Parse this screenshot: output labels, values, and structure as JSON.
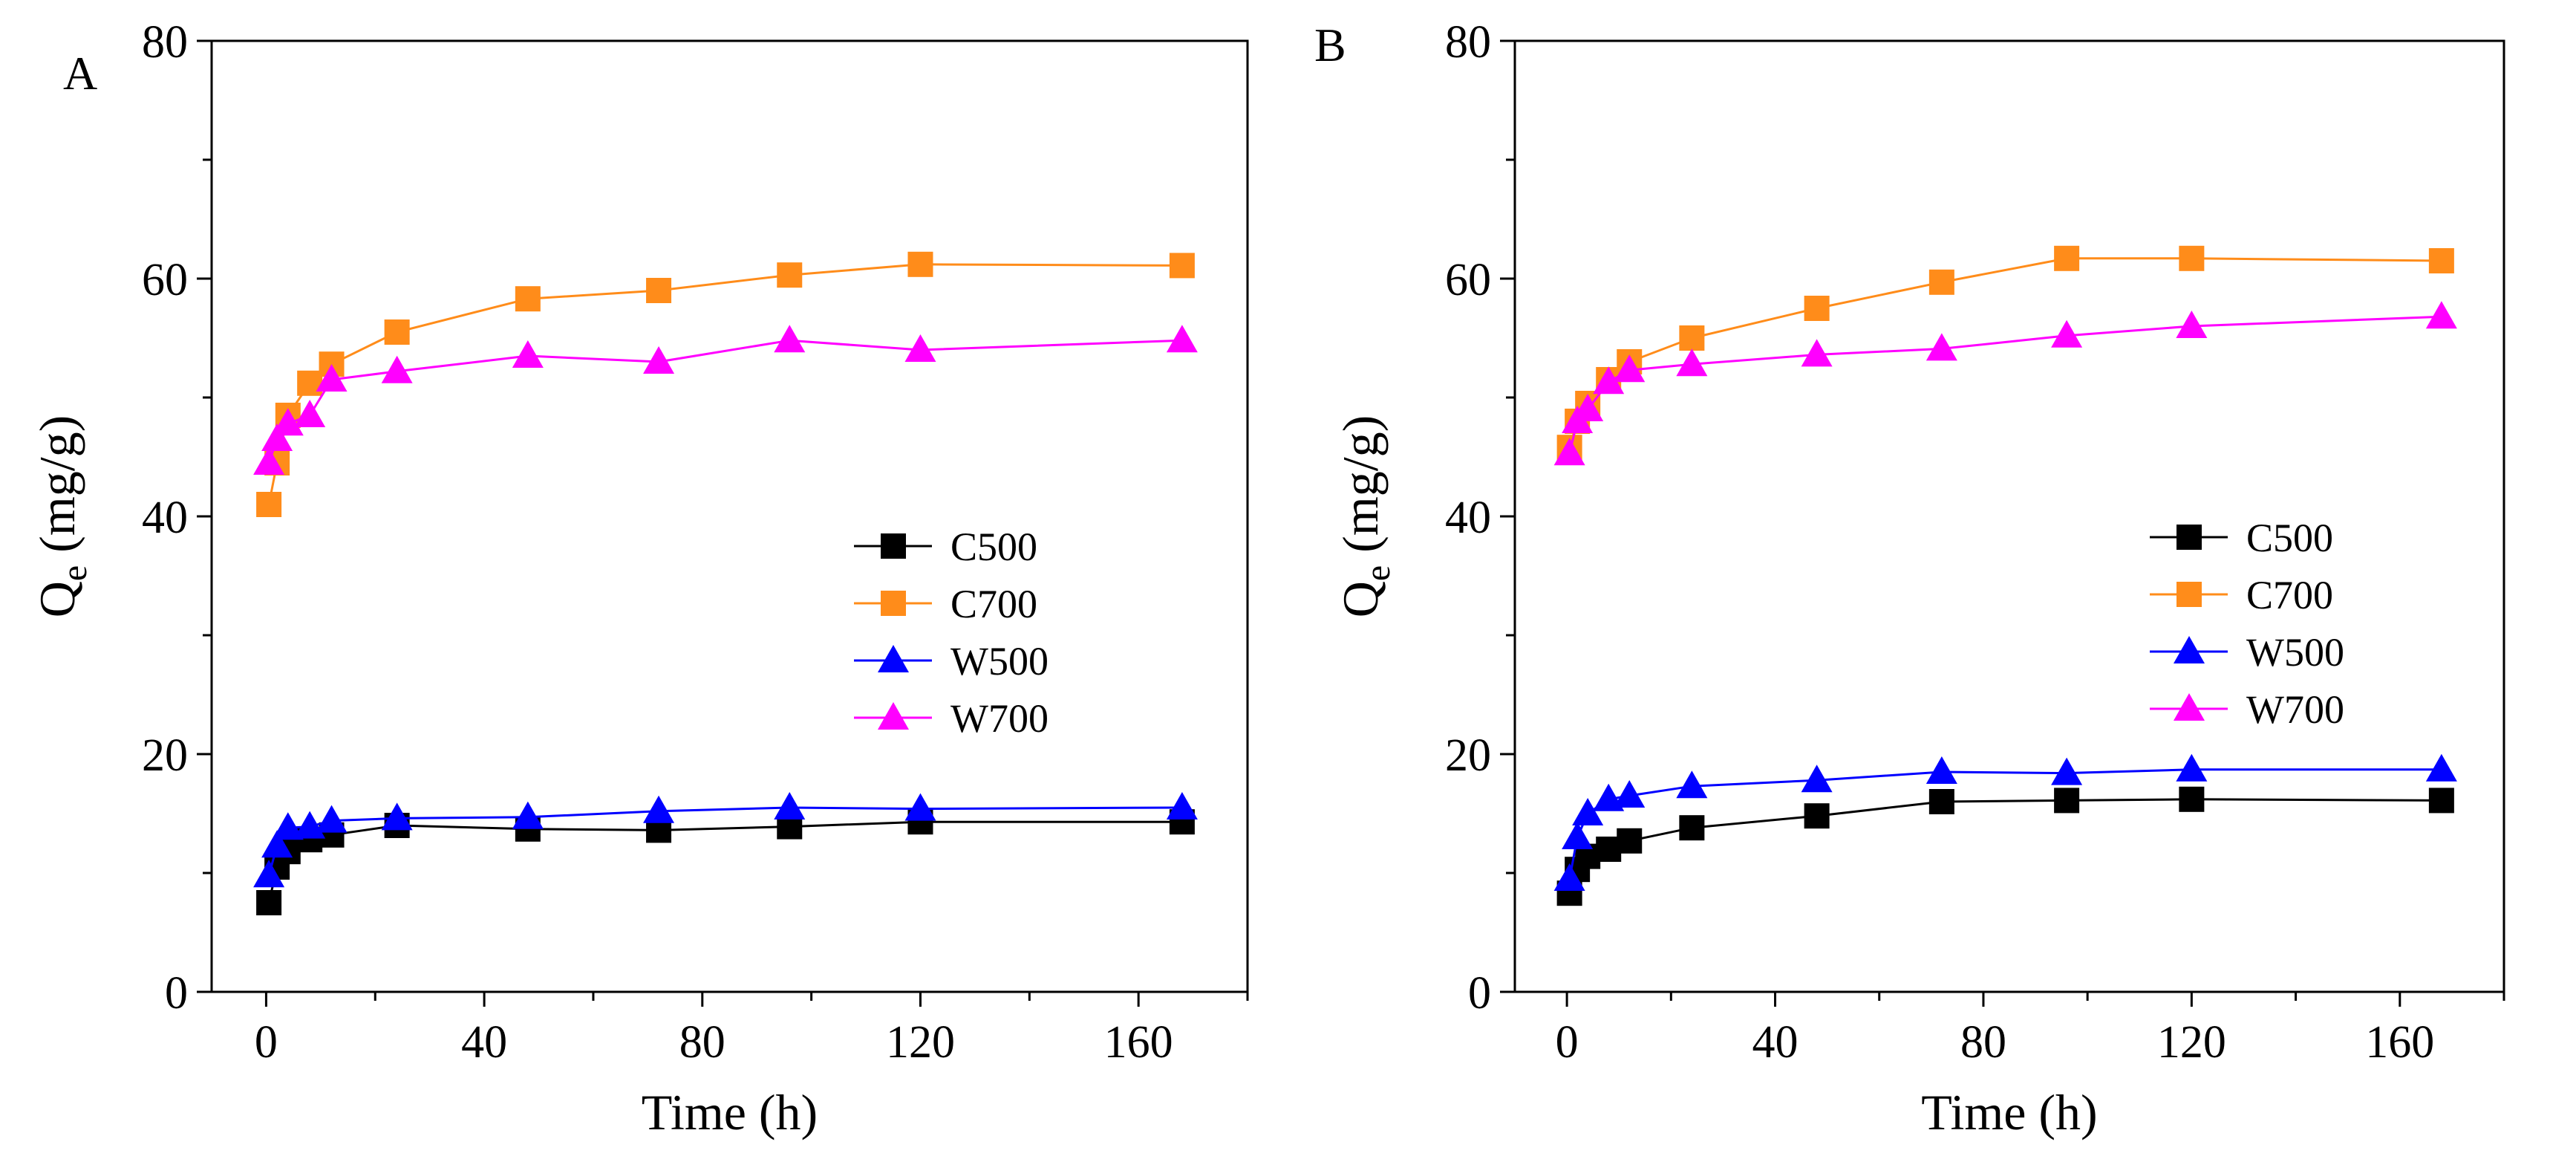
{
  "chart_data": [
    {
      "panel": "A",
      "type": "line",
      "xlabel": "Time (h)",
      "ylabel": "Q",
      "ylabel_sub": "e",
      "ylabel_unit": " (mg/g)",
      "xlim": [
        -10,
        180
      ],
      "ylim": [
        0,
        80
      ],
      "xticks": [
        0,
        40,
        80,
        120,
        160
      ],
      "yticks": [
        0,
        20,
        40,
        60,
        80
      ],
      "legend_position": "center-right",
      "series": [
        {
          "name": "C500",
          "color": "#000000",
          "marker": "square",
          "x": [
            0.5,
            2,
            4,
            8,
            12,
            24,
            48,
            72,
            96,
            120,
            168
          ],
          "y": [
            7.5,
            10.5,
            11.8,
            12.8,
            13.2,
            14.0,
            13.7,
            13.6,
            13.9,
            14.3,
            14.3
          ]
        },
        {
          "name": "C700",
          "color": "#FF8C1A",
          "marker": "square",
          "x": [
            0.5,
            2,
            4,
            8,
            12,
            24,
            48,
            72,
            96,
            120,
            168
          ],
          "y": [
            41.0,
            44.5,
            48.5,
            51.2,
            52.8,
            55.5,
            58.3,
            59.0,
            60.3,
            61.2,
            61.1
          ]
        },
        {
          "name": "W500",
          "color": "#0000FF",
          "marker": "triangle",
          "x": [
            0.5,
            2,
            4,
            8,
            12,
            24,
            48,
            72,
            96,
            120,
            168
          ],
          "y": [
            9.8,
            12.3,
            13.8,
            13.9,
            14.4,
            14.6,
            14.7,
            15.2,
            15.5,
            15.4,
            15.5
          ]
        },
        {
          "name": "W700",
          "color": "#FF00FF",
          "marker": "triangle",
          "x": [
            0.5,
            2,
            4,
            8,
            12,
            24,
            48,
            72,
            96,
            120,
            168
          ],
          "y": [
            44.5,
            46.5,
            47.8,
            48.5,
            51.5,
            52.2,
            53.5,
            53.0,
            54.8,
            54.0,
            54.8
          ]
        }
      ]
    },
    {
      "panel": "B",
      "type": "line",
      "xlabel": "Time (h)",
      "ylabel": "Q",
      "ylabel_sub": "e",
      "ylabel_unit": " (mg/g)",
      "xlim": [
        -10,
        180
      ],
      "ylim": [
        0,
        80
      ],
      "xticks": [
        0,
        40,
        80,
        120,
        160
      ],
      "yticks": [
        0,
        20,
        40,
        60,
        80
      ],
      "legend_position": "center-right",
      "series": [
        {
          "name": "C500",
          "color": "#000000",
          "marker": "square",
          "x": [
            0.5,
            2,
            4,
            8,
            12,
            24,
            48,
            72,
            96,
            120,
            168
          ],
          "y": [
            8.3,
            10.3,
            11.4,
            12.0,
            12.7,
            13.8,
            14.8,
            16.0,
            16.1,
            16.2,
            16.1
          ]
        },
        {
          "name": "C700",
          "color": "#FF8C1A",
          "marker": "square",
          "x": [
            0.5,
            2,
            4,
            8,
            12,
            24,
            48,
            72,
            96,
            120,
            168
          ],
          "y": [
            45.8,
            48.0,
            49.5,
            51.5,
            53.0,
            55.0,
            57.5,
            59.7,
            61.7,
            61.7,
            61.5
          ]
        },
        {
          "name": "W500",
          "color": "#0000FF",
          "marker": "triangle",
          "x": [
            0.5,
            2,
            4,
            8,
            12,
            24,
            48,
            72,
            96,
            120,
            168
          ],
          "y": [
            9.5,
            13.0,
            15.0,
            16.2,
            16.5,
            17.3,
            17.8,
            18.5,
            18.4,
            18.7,
            18.7
          ]
        },
        {
          "name": "W700",
          "color": "#FF00FF",
          "marker": "triangle",
          "x": [
            0.5,
            2,
            4,
            8,
            12,
            24,
            48,
            72,
            96,
            120,
            168
          ],
          "y": [
            45.3,
            48.0,
            49.0,
            51.3,
            52.3,
            52.8,
            53.6,
            54.1,
            55.2,
            56.0,
            56.8
          ]
        }
      ]
    }
  ]
}
